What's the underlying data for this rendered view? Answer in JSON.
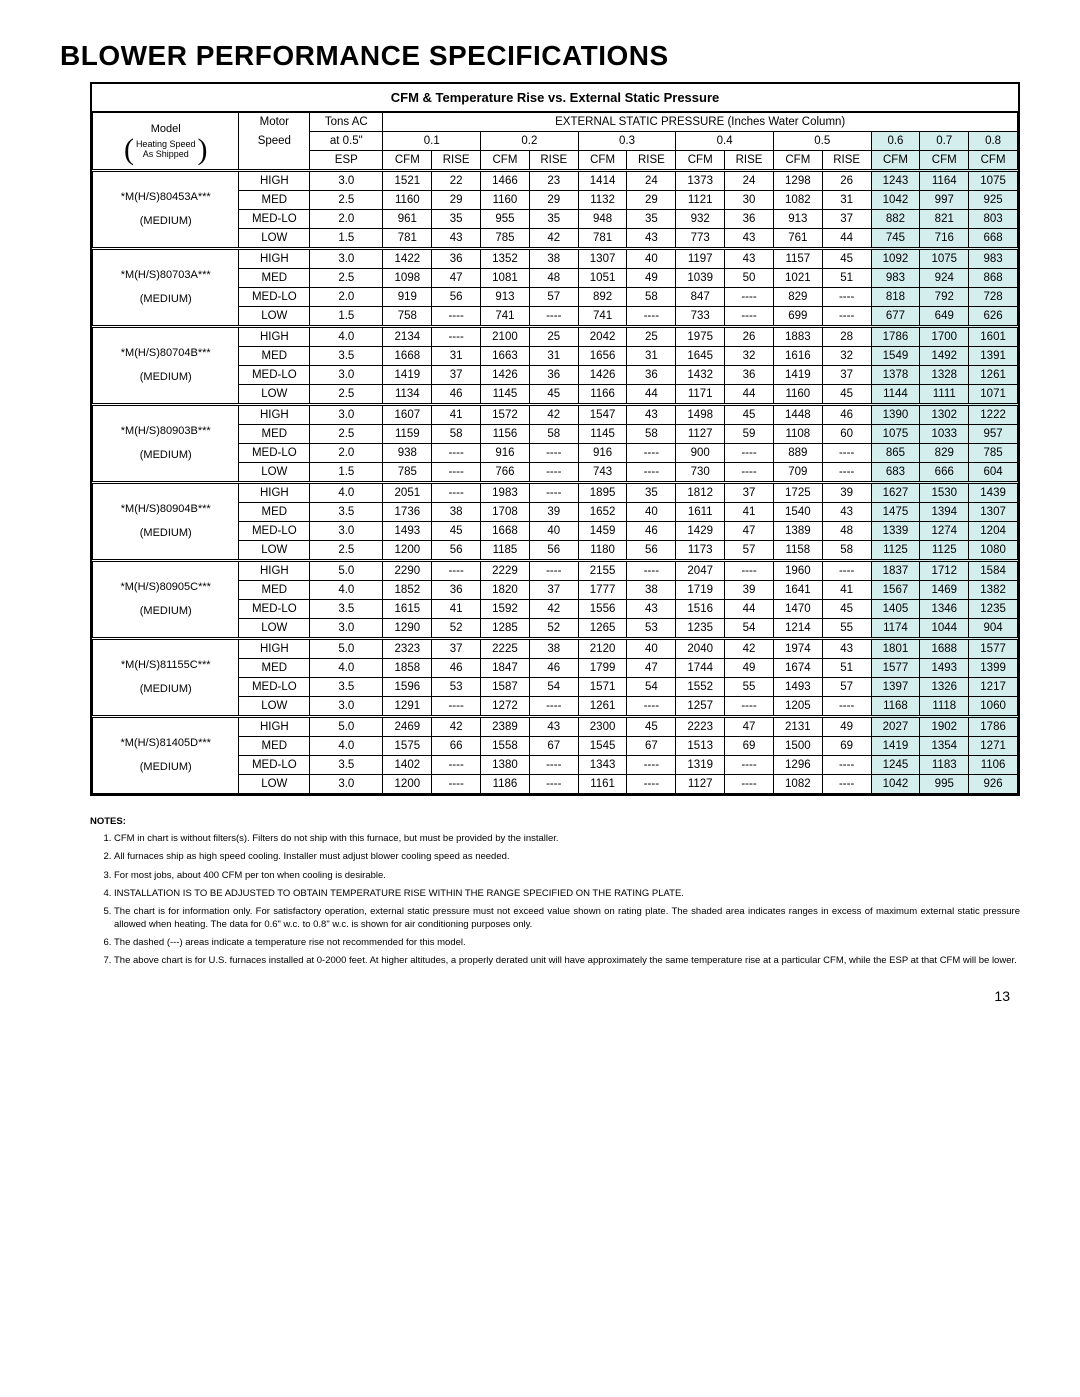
{
  "page": {
    "title": "BLOWER PERFORMANCE SPECIFICATIONS",
    "subtitle": "CFM & Temperature Rise vs. External Static Pressure",
    "page_number": "13"
  },
  "head": {
    "model": "Model",
    "heating_speed": "Heating Speed",
    "as_shipped": "As Shipped",
    "motor": "Motor",
    "speed": "Speed",
    "tons_ac": "Tons AC",
    "at_05": "at 0.5\"",
    "esp": "ESP",
    "ext_hdr": "EXTERNAL STATIC PRESSURE (Inches Water Column)",
    "p01": "0.1",
    "p02": "0.2",
    "p03": "0.3",
    "p04": "0.4",
    "p05": "0.5",
    "p06": "0.6",
    "p07": "0.7",
    "p08": "0.8",
    "cfm": "CFM",
    "rise": "RISE"
  },
  "shaded_color": "#d4eeee",
  "groups": [
    {
      "model": "*M(H/S)80453A***",
      "shade": "shaded-453",
      "ship": "(MEDIUM)",
      "rows": [
        {
          "spd": "HIGH",
          "tons": "3.0",
          "v": [
            "1521",
            "22",
            "1466",
            "23",
            "1414",
            "24",
            "1373",
            "24",
            "1298",
            "26",
            "1243",
            "1164",
            "1075"
          ]
        },
        {
          "spd": "MED",
          "tons": "2.5",
          "v": [
            "1160",
            "29",
            "1160",
            "29",
            "1132",
            "29",
            "1121",
            "30",
            "1082",
            "31",
            "1042",
            "997",
            "925"
          ]
        },
        {
          "spd": "MED-LO",
          "tons": "2.0",
          "v": [
            "961",
            "35",
            "955",
            "35",
            "948",
            "35",
            "932",
            "36",
            "913",
            "37",
            "882",
            "821",
            "803"
          ]
        },
        {
          "spd": "LOW",
          "tons": "1.5",
          "v": [
            "781",
            "43",
            "785",
            "42",
            "781",
            "43",
            "773",
            "43",
            "761",
            "44",
            "745",
            "716",
            "668"
          ]
        }
      ]
    },
    {
      "model": "*M(H/S)80703A***",
      "ship": "(MEDIUM)",
      "rows": [
        {
          "spd": "HIGH",
          "tons": "3.0",
          "v": [
            "1422",
            "36",
            "1352",
            "38",
            "1307",
            "40",
            "1197",
            "43",
            "1157",
            "45",
            "1092",
            "1075",
            "983"
          ]
        },
        {
          "spd": "MED",
          "tons": "2.5",
          "v": [
            "1098",
            "47",
            "1081",
            "48",
            "1051",
            "49",
            "1039",
            "50",
            "1021",
            "51",
            "983",
            "924",
            "868"
          ]
        },
        {
          "spd": "MED-LO",
          "tons": "2.0",
          "v": [
            "919",
            "56",
            "913",
            "57",
            "892",
            "58",
            "847",
            "----",
            "829",
            "----",
            "818",
            "792",
            "728"
          ]
        },
        {
          "spd": "LOW",
          "tons": "1.5",
          "v": [
            "758",
            "----",
            "741",
            "----",
            "741",
            "----",
            "733",
            "----",
            "699",
            "----",
            "677",
            "649",
            "626"
          ]
        }
      ]
    },
    {
      "model": "*M(H/S)80704B***",
      "ship": "(MEDIUM)",
      "rows": [
        {
          "spd": "HIGH",
          "tons": "4.0",
          "v": [
            "2134",
            "----",
            "2100",
            "25",
            "2042",
            "25",
            "1975",
            "26",
            "1883",
            "28",
            "1786",
            "1700",
            "1601"
          ]
        },
        {
          "spd": "MED",
          "tons": "3.5",
          "v": [
            "1668",
            "31",
            "1663",
            "31",
            "1656",
            "31",
            "1645",
            "32",
            "1616",
            "32",
            "1549",
            "1492",
            "1391"
          ]
        },
        {
          "spd": "MED-LO",
          "tons": "3.0",
          "v": [
            "1419",
            "37",
            "1426",
            "36",
            "1426",
            "36",
            "1432",
            "36",
            "1419",
            "37",
            "1378",
            "1328",
            "1261"
          ]
        },
        {
          "spd": "LOW",
          "tons": "2.5",
          "v": [
            "1134",
            "46",
            "1145",
            "45",
            "1166",
            "44",
            "1171",
            "44",
            "1160",
            "45",
            "1144",
            "1111",
            "1071"
          ]
        }
      ]
    },
    {
      "model": "*M(H/S)80903B***",
      "ship": "(MEDIUM)",
      "rows": [
        {
          "spd": "HIGH",
          "tons": "3.0",
          "v": [
            "1607",
            "41",
            "1572",
            "42",
            "1547",
            "43",
            "1498",
            "45",
            "1448",
            "46",
            "1390",
            "1302",
            "1222"
          ]
        },
        {
          "spd": "MED",
          "tons": "2.5",
          "v": [
            "1159",
            "58",
            "1156",
            "58",
            "1145",
            "58",
            "1127",
            "59",
            "1108",
            "60",
            "1075",
            "1033",
            "957"
          ]
        },
        {
          "spd": "MED-LO",
          "tons": "2.0",
          "v": [
            "938",
            "----",
            "916",
            "----",
            "916",
            "----",
            "900",
            "----",
            "889",
            "----",
            "865",
            "829",
            "785"
          ]
        },
        {
          "spd": "LOW",
          "tons": "1.5",
          "v": [
            "785",
            "----",
            "766",
            "----",
            "743",
            "----",
            "730",
            "----",
            "709",
            "----",
            "683",
            "666",
            "604"
          ]
        }
      ]
    },
    {
      "model": "*M(H/S)80904B***",
      "ship": "(MEDIUM)",
      "rows": [
        {
          "spd": "HIGH",
          "tons": "4.0",
          "v": [
            "2051",
            "----",
            "1983",
            "----",
            "1895",
            "35",
            "1812",
            "37",
            "1725",
            "39",
            "1627",
            "1530",
            "1439"
          ]
        },
        {
          "spd": "MED",
          "tons": "3.5",
          "v": [
            "1736",
            "38",
            "1708",
            "39",
            "1652",
            "40",
            "1611",
            "41",
            "1540",
            "43",
            "1475",
            "1394",
            "1307"
          ]
        },
        {
          "spd": "MED-LO",
          "tons": "3.0",
          "v": [
            "1493",
            "45",
            "1668",
            "40",
            "1459",
            "46",
            "1429",
            "47",
            "1389",
            "48",
            "1339",
            "1274",
            "1204"
          ]
        },
        {
          "spd": "LOW",
          "tons": "2.5",
          "v": [
            "1200",
            "56",
            "1185",
            "56",
            "1180",
            "56",
            "1173",
            "57",
            "1158",
            "58",
            "1125",
            "1125",
            "1080"
          ]
        }
      ]
    },
    {
      "model": "*M(H/S)80905C***",
      "ship": "(MEDIUM)",
      "rows": [
        {
          "spd": "HIGH",
          "tons": "5.0",
          "v": [
            "2290",
            "----",
            "2229",
            "----",
            "2155",
            "----",
            "2047",
            "----",
            "1960",
            "----",
            "1837",
            "1712",
            "1584"
          ]
        },
        {
          "spd": "MED",
          "tons": "4.0",
          "v": [
            "1852",
            "36",
            "1820",
            "37",
            "1777",
            "38",
            "1719",
            "39",
            "1641",
            "41",
            "1567",
            "1469",
            "1382"
          ]
        },
        {
          "spd": "MED-LO",
          "tons": "3.5",
          "v": [
            "1615",
            "41",
            "1592",
            "42",
            "1556",
            "43",
            "1516",
            "44",
            "1470",
            "45",
            "1405",
            "1346",
            "1235"
          ]
        },
        {
          "spd": "LOW",
          "tons": "3.0",
          "v": [
            "1290",
            "52",
            "1285",
            "52",
            "1265",
            "53",
            "1235",
            "54",
            "1214",
            "55",
            "1174",
            "1044",
            "904"
          ]
        }
      ]
    },
    {
      "model": "*M(H/S)81155C***",
      "ship": "(MEDIUM)",
      "rows": [
        {
          "spd": "HIGH",
          "tons": "5.0",
          "v": [
            "2323",
            "37",
            "2225",
            "38",
            "2120",
            "40",
            "2040",
            "42",
            "1974",
            "43",
            "1801",
            "1688",
            "1577"
          ]
        },
        {
          "spd": "MED",
          "tons": "4.0",
          "v": [
            "1858",
            "46",
            "1847",
            "46",
            "1799",
            "47",
            "1744",
            "49",
            "1674",
            "51",
            "1577",
            "1493",
            "1399"
          ]
        },
        {
          "spd": "MED-LO",
          "tons": "3.5",
          "v": [
            "1596",
            "53",
            "1587",
            "54",
            "1571",
            "54",
            "1552",
            "55",
            "1493",
            "57",
            "1397",
            "1326",
            "1217"
          ]
        },
        {
          "spd": "LOW",
          "tons": "3.0",
          "v": [
            "1291",
            "----",
            "1272",
            "----",
            "1261",
            "----",
            "1257",
            "----",
            "1205",
            "----",
            "1168",
            "1118",
            "1060"
          ]
        }
      ]
    },
    {
      "model": "*M(H/S)81405D***",
      "ship": "(MEDIUM)",
      "rows": [
        {
          "spd": "HIGH",
          "tons": "5.0",
          "v": [
            "2469",
            "42",
            "2389",
            "43",
            "2300",
            "45",
            "2223",
            "47",
            "2131",
            "49",
            "2027",
            "1902",
            "1786"
          ]
        },
        {
          "spd": "MED",
          "tons": "4.0",
          "v": [
            "1575",
            "66",
            "1558",
            "67",
            "1545",
            "67",
            "1513",
            "69",
            "1500",
            "69",
            "1419",
            "1354",
            "1271"
          ]
        },
        {
          "spd": "MED-LO",
          "tons": "3.5",
          "v": [
            "1402",
            "----",
            "1380",
            "----",
            "1343",
            "----",
            "1319",
            "----",
            "1296",
            "----",
            "1245",
            "1183",
            "1106"
          ]
        },
        {
          "spd": "LOW",
          "tons": "3.0",
          "v": [
            "1200",
            "----",
            "1186",
            "----",
            "1161",
            "----",
            "1127",
            "----",
            "1082",
            "----",
            "1042",
            "995",
            "926"
          ]
        }
      ]
    }
  ],
  "notes": {
    "hdr": "NOTES:",
    "items": [
      "CFM in chart is without filters(s). Filters do not ship with this furnace, but must be provided by the installer.",
      "All furnaces ship as high speed cooling. Installer must adjust blower cooling speed as needed.",
      "For most jobs, about 400 CFM per ton when cooling is desirable.",
      "INSTALLATION IS TO BE ADJUSTED TO OBTAIN TEMPERATURE RISE WITHIN THE RANGE SPECIFIED ON THE RATING PLATE.",
      "The chart is for information only. For satisfactory operation, external static pressure must not exceed value shown on rating plate. The shaded area indicates ranges in excess of maximum external static pressure allowed when heating. The data for 0.6\" w.c. to 0.8\" w.c. is shown for air conditioning purposes only.",
      "The dashed (---) areas indicate a temperature rise not recommended for this model.",
      "The above chart is for U.S. furnaces installed at 0-2000 feet. At higher altitudes, a properly derated unit will have approximately the same temperature rise at a particular CFM, while the ESP at that CFM will be lower."
    ]
  }
}
